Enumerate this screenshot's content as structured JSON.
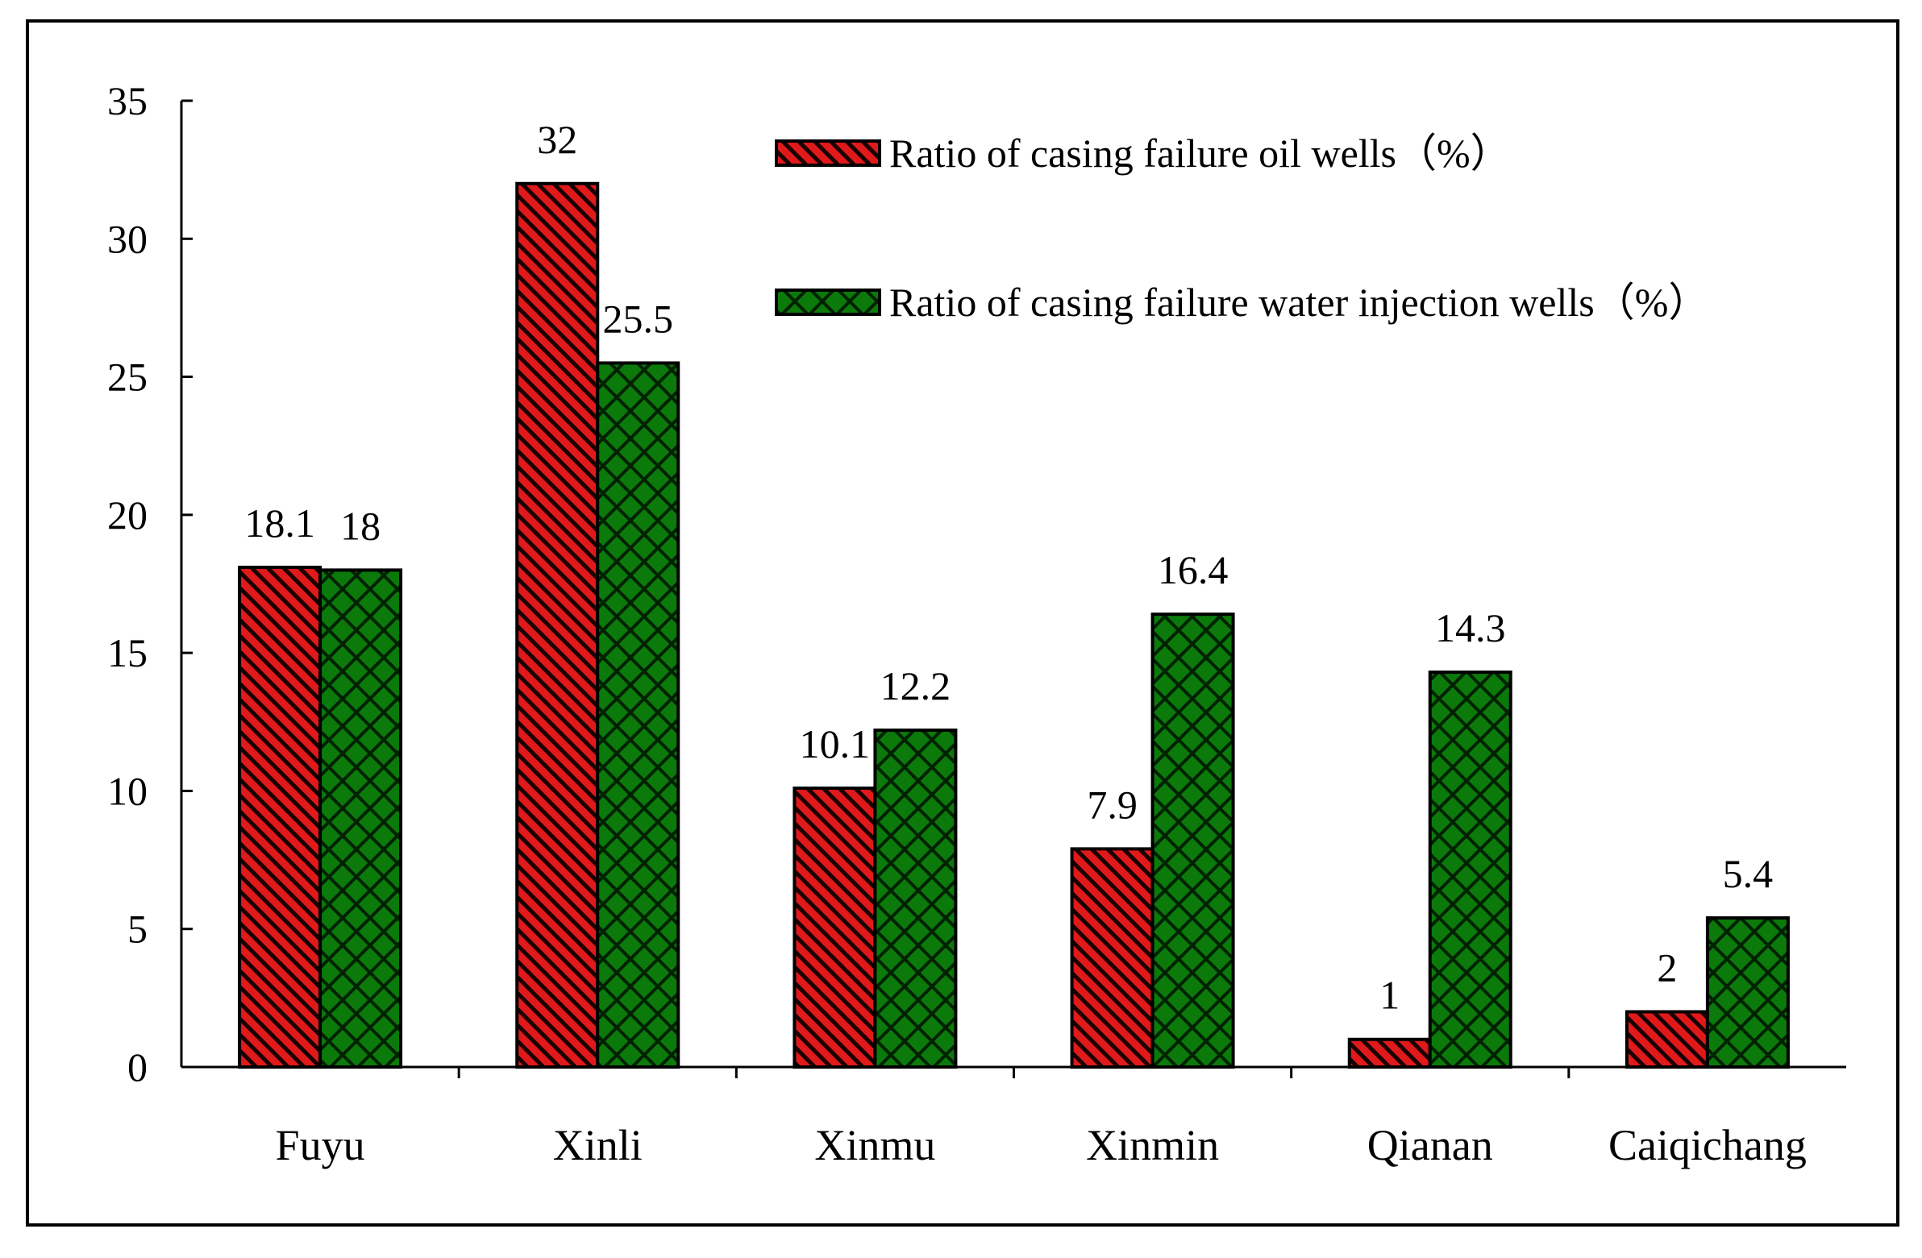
{
  "chart_data": {
    "type": "bar",
    "categories": [
      "Fuyu",
      "Xinli",
      "Xinmu",
      "Xinmin",
      "Qianan",
      "Caiqichang"
    ],
    "series": [
      {
        "name": "Ratio of casing failure oil wells（%）",
        "values": [
          18.1,
          32,
          10.1,
          7.9,
          1,
          2
        ],
        "data_labels": [
          "18.1",
          "32",
          "10.1",
          "7.9",
          "1",
          "2"
        ],
        "color": "#e0191b",
        "pattern": "diagonal-stripes"
      },
      {
        "name": "Ratio of casing failure water injection wells（%）",
        "values": [
          18,
          25.5,
          12.2,
          16.4,
          14.3,
          5.4
        ],
        "data_labels": [
          "18",
          "25.5",
          "12.2",
          "16.4",
          "14.3",
          "5.4"
        ],
        "color": "#0b7a0b",
        "pattern": "crosshatch"
      }
    ],
    "yticks": [
      "0",
      "5",
      "10",
      "15",
      "20",
      "25",
      "30",
      "35"
    ],
    "ylim": [
      0,
      35
    ],
    "title": "",
    "xlabel": "",
    "ylabel": "",
    "grid": false,
    "legend_position": "top-right"
  }
}
